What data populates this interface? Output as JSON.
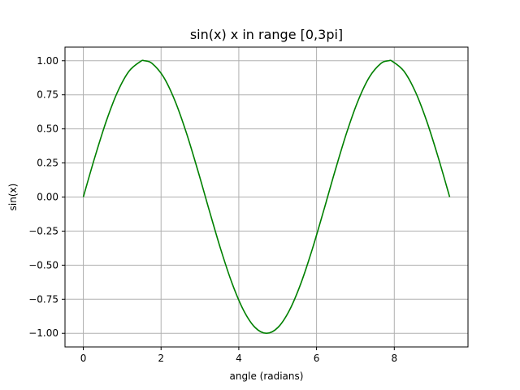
{
  "chart_data": {
    "type": "line",
    "title": "sin(x) x in range [0,3pi]",
    "xlabel": "angle (radians)",
    "ylabel": "sin(x)",
    "xlim": [
      -0.4712,
      9.896
    ],
    "ylim": [
      -1.1,
      1.1
    ],
    "xticks": [
      0,
      2,
      4,
      6,
      8
    ],
    "xtick_labels": [
      "0",
      "2",
      "4",
      "6",
      "8"
    ],
    "yticks": [
      -1.0,
      -0.75,
      -0.5,
      -0.25,
      0.0,
      0.25,
      0.5,
      0.75,
      1.0
    ],
    "ytick_labels": [
      "−1.00",
      "−0.75",
      "−0.50",
      "−0.25",
      "0.00",
      "0.25",
      "0.50",
      "0.75",
      "1.00"
    ],
    "grid": true,
    "colors": {
      "line": "#008000",
      "grid": "#b0b0b0",
      "axes": "#000000"
    },
    "series": [
      {
        "x": [
          0,
          0.2945,
          0.589,
          0.8836,
          1.1781,
          1.4726,
          1.5708,
          1.7671,
          2.0617,
          2.3562,
          2.6507,
          2.9452,
          3.1416,
          3.2398,
          3.5343,
          3.8288,
          4.1233,
          4.4179,
          4.7124,
          5.0069,
          5.3014,
          5.596,
          5.8905,
          6.185,
          6.2832,
          6.4795,
          6.7741,
          7.0686,
          7.3631,
          7.6576,
          7.854,
          7.9522,
          8.2467,
          8.5412,
          8.8357,
          9.1303,
          9.4248
        ],
        "y": [
          0,
          0.2903,
          0.5556,
          0.773,
          0.9239,
          0.9952,
          1.0,
          0.9808,
          0.8819,
          0.7071,
          0.4714,
          0.1951,
          0,
          -0.098,
          -0.3827,
          -0.6344,
          -0.8315,
          -0.9569,
          -1.0,
          -0.9569,
          -0.8315,
          -0.6344,
          -0.3827,
          -0.098,
          0,
          0.1951,
          0.4714,
          0.7071,
          0.8819,
          0.9808,
          1.0,
          0.9952,
          0.9239,
          0.773,
          0.5556,
          0.2903,
          0
        ]
      }
    ]
  }
}
